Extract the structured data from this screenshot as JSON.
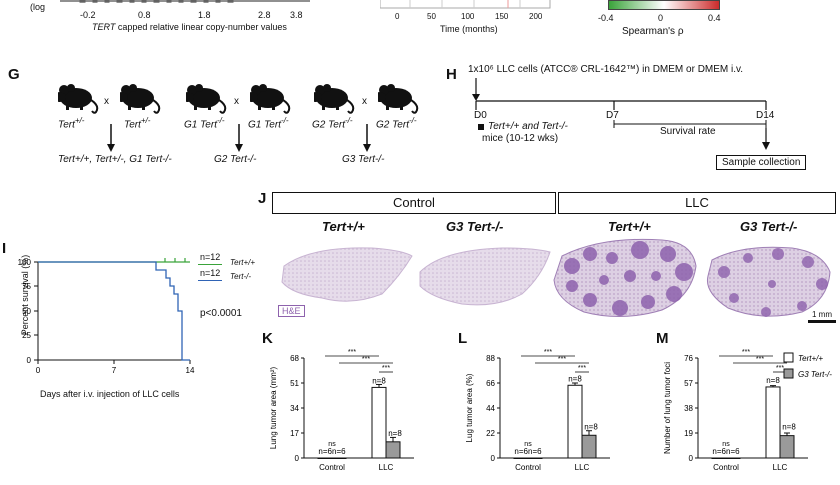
{
  "top": {
    "left_axis_partial": "(log",
    "left_ticks": [
      "-0.2",
      "0.8",
      "1.8",
      "2.8",
      "3.8"
    ],
    "left_xlabel_ital": "TERT",
    "left_xlabel_rest": " capped relative linear copy-number values",
    "mid_ticks": [
      "0",
      "50",
      "100",
      "150",
      "200"
    ],
    "mid_xlabel": "Time (months)",
    "colorbar_ticks": [
      "-0.4",
      "0",
      "0.4"
    ],
    "colorbar_label": "Spearman's ρ",
    "colors": {
      "neg": "#3aa33a",
      "pos": "#cc2b2b"
    }
  },
  "G": {
    "label": "G",
    "crosses": [
      {
        "left": "Tert",
        "left_sup": "+/-",
        "right": "Tert",
        "right_sup": "+/-",
        "result": "Tert+/+, Tert+/-, G1 Tert-/-"
      },
      {
        "left": "G1 Tert",
        "left_sup": "-/-",
        "right": "G1 Tert",
        "right_sup": "-/-",
        "result": "G2 Tert-/-"
      },
      {
        "left": "G2 Tert",
        "left_sup": "-/-",
        "right": "G2 Tert",
        "right_sup": "-/-",
        "result": "G3 Tert-/-"
      }
    ],
    "x": "x"
  },
  "H": {
    "label": "H",
    "title": "1x10⁶ LLC cells (ATCC® CRL-1642™) in DMEM or DMEM i.v.",
    "d0": "D0",
    "d7": "D7",
    "d14": "D14",
    "mice_line1": "Tert+/+ and Tert-/-",
    "mice_line2": "mice (10-12 wks)",
    "survival": "Survival rate",
    "sample": "Sample collection"
  },
  "I": {
    "label": "I",
    "ylabel": "Percent survival (%)",
    "xlabel": "Days after i.v. injection of LLC cells",
    "pvalue": "p<0.0001",
    "n1": "n=12",
    "n2": "n=12",
    "legend1": "Tert+/+",
    "legend2": "Tert-/-",
    "colors": {
      "wt": "#3aa33a",
      "ko": "#2f63b5"
    }
  },
  "J": {
    "label": "J",
    "group_control": "Control",
    "group_llc": "LLC",
    "cols": [
      "Tert+/+",
      "G3 Tert-/-",
      "Tert+/+",
      "G3 Tert-/-"
    ],
    "stain": "H&E",
    "scale": "1 mm"
  },
  "chart_data": [
    {
      "type": "bar",
      "panel": "K",
      "ylabel": "Lung tumor area (mm²)",
      "categories": [
        "Control",
        "LLC"
      ],
      "series": [
        {
          "name": "Tert+/+",
          "values": [
            0,
            48
          ]
        },
        {
          "name": "G3 Tert-/-",
          "values": [
            0,
            11
          ]
        }
      ],
      "errors": [
        [
          0,
          2
        ],
        [
          0,
          3
        ]
      ],
      "yticks": [
        "0",
        "17",
        "34",
        "51",
        "68"
      ],
      "ylim": [
        0,
        68
      ],
      "n_control": "n=6n=6",
      "n_llc": [
        "n=8",
        "n=8"
      ],
      "ns": "ns",
      "stars": "***"
    },
    {
      "type": "bar",
      "panel": "L",
      "ylabel": "Lug tumor area (%)",
      "categories": [
        "Control",
        "LLC"
      ],
      "series": [
        {
          "name": "Tert+/+",
          "values": [
            0,
            64
          ]
        },
        {
          "name": "G3 Tert-/-",
          "values": [
            0,
            20
          ]
        }
      ],
      "errors": [
        [
          0,
          2
        ],
        [
          0,
          4
        ]
      ],
      "yticks": [
        "0",
        "22",
        "44",
        "66",
        "88"
      ],
      "ylim": [
        0,
        88
      ],
      "n_control": "n=6n=6",
      "n_llc": [
        "n=8",
        "n=8"
      ],
      "ns": "ns",
      "stars": "***"
    },
    {
      "type": "bar",
      "panel": "M",
      "ylabel": "Number of lung tumor foci",
      "categories": [
        "Control",
        "LLC"
      ],
      "series": [
        {
          "name": "Tert+/+",
          "values": [
            0,
            54
          ]
        },
        {
          "name": "G3 Tert-/-",
          "values": [
            0,
            17
          ]
        }
      ],
      "errors": [
        [
          0,
          1
        ],
        [
          0,
          2
        ]
      ],
      "yticks": [
        "0",
        "19",
        "38",
        "57",
        "76"
      ],
      "ylim": [
        0,
        76
      ],
      "n_control": "n=6n=6",
      "n_llc": [
        "n=8",
        "n=8"
      ],
      "ns": "ns",
      "stars": "***",
      "legend": [
        "Tert+/+",
        "G3 Tert-/-"
      ]
    }
  ]
}
